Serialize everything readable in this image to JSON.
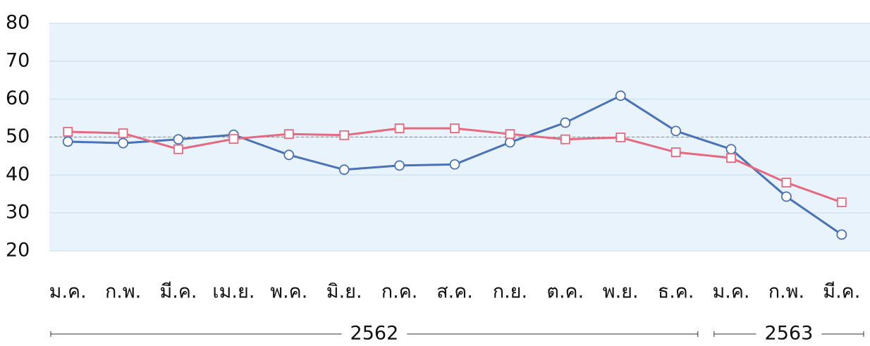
{
  "chart_data": {
    "type": "line",
    "categories": [
      "ม.ค.",
      "ก.พ.",
      "มี.ค.",
      "เม.ย.",
      "พ.ค.",
      "มิ.ย.",
      "ก.ค.",
      "ส.ค.",
      "ก.ย.",
      "ต.ค.",
      "พ.ย.",
      "ธ.ค.",
      "ม.ค.",
      "ก.พ.",
      "มี.ค."
    ],
    "series": [
      {
        "color": "#4a72b8",
        "marker": "circle",
        "values": [
          48.8,
          48.4,
          49.4,
          50.6,
          45.3,
          41.4,
          42.5,
          42.8,
          48.6,
          53.8,
          60.9,
          51.6,
          46.8,
          34.3,
          24.3
        ]
      },
      {
        "color": "#e8697f",
        "marker": "square",
        "values": [
          51.4,
          51.0,
          46.8,
          49.5,
          50.8,
          50.5,
          52.3,
          52.3,
          50.8,
          49.4,
          49.9,
          46.0,
          44.5,
          38.0,
          32.8
        ]
      }
    ],
    "ylim": [
      20,
      80
    ],
    "yticks": [
      20,
      30,
      40,
      50,
      60,
      70,
      80
    ],
    "grid": true,
    "reference_line": 50,
    "groups": [
      {
        "label": "2562",
        "start": 0,
        "end": 11
      },
      {
        "label": "2563",
        "start": 12,
        "end": 14
      }
    ]
  }
}
